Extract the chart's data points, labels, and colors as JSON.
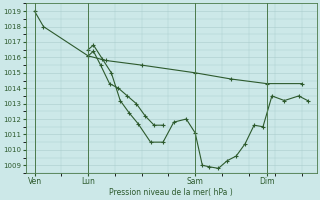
{
  "background_color": "#cce8e8",
  "grid_color": "#aacccc",
  "line_color": "#2d5a2d",
  "ylabel": "Pression niveau de la mer( hPa )",
  "ylim": [
    1008.5,
    1019.5
  ],
  "xtick_labels": [
    "Ven",
    "Lun",
    "Sam",
    "Dim"
  ],
  "xtick_positions": [
    0.0,
    3.0,
    9.0,
    13.0
  ],
  "figsize": [
    3.2,
    2.0
  ],
  "dpi": 100,
  "lx1": [
    0.0,
    0.5,
    3.0,
    4.0,
    6.0,
    9.0,
    11.0,
    13.0,
    15.0
  ],
  "ly1": [
    1019.0,
    1018.0,
    1016.1,
    1015.8,
    1015.5,
    1015.0,
    1014.6,
    1014.3,
    1014.3
  ],
  "lx2": [
    3.0,
    3.3,
    3.8,
    4.3,
    4.8,
    5.3,
    5.8,
    6.5,
    7.2,
    7.8,
    8.5,
    9.0,
    9.4,
    9.8,
    10.3,
    10.8,
    11.3,
    11.8,
    12.3,
    12.8,
    13.3,
    14.0,
    14.8,
    15.3
  ],
  "ly2": [
    1016.5,
    1016.8,
    1015.9,
    1015.0,
    1013.2,
    1012.4,
    1011.7,
    1010.5,
    1010.5,
    1011.8,
    1012.0,
    1011.1,
    1009.0,
    1008.9,
    1008.8,
    1009.3,
    1009.6,
    1010.4,
    1011.6,
    1011.5,
    1013.5,
    1013.2,
    1013.5,
    1013.2
  ],
  "lx3": [
    3.0,
    3.3,
    3.7,
    4.2,
    4.7,
    5.2,
    5.7,
    6.2,
    6.7,
    7.2
  ],
  "ly3": [
    1016.1,
    1016.4,
    1015.5,
    1014.3,
    1014.0,
    1013.5,
    1013.0,
    1012.2,
    1011.6,
    1011.6
  ]
}
